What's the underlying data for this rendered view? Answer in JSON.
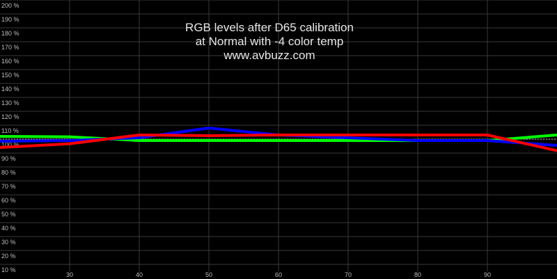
{
  "chart_data": {
    "type": "line",
    "title_lines": [
      "RGB levels after D65 calibration",
      "at Normal with -4 color temp",
      "www.avbuzz.com"
    ],
    "xlim": [
      20,
      100
    ],
    "ylim": [
      10,
      200
    ],
    "x_ticks": [
      30,
      40,
      50,
      60,
      70,
      80,
      90
    ],
    "y_ticks": [
      10,
      20,
      30,
      40,
      50,
      60,
      70,
      80,
      90,
      100,
      110,
      120,
      130,
      140,
      150,
      160,
      170,
      180,
      190,
      200
    ],
    "y_tick_suffix": " %",
    "grid": true,
    "reference_line": 100,
    "x": [
      20,
      30,
      40,
      50,
      60,
      70,
      80,
      90,
      100
    ],
    "series": [
      {
        "color": "#00ff00",
        "values": [
          102,
          101.7,
          99,
          99,
          99,
          99,
          99,
          99,
          103
        ]
      },
      {
        "color": "#0000ff",
        "values": [
          98.5,
          99,
          101,
          108,
          103,
          101,
          99,
          99,
          95.5
        ]
      },
      {
        "color": "#ff0000",
        "values": [
          94,
          96.7,
          103,
          102.5,
          103,
          103,
          103,
          103,
          91.7
        ]
      }
    ]
  }
}
